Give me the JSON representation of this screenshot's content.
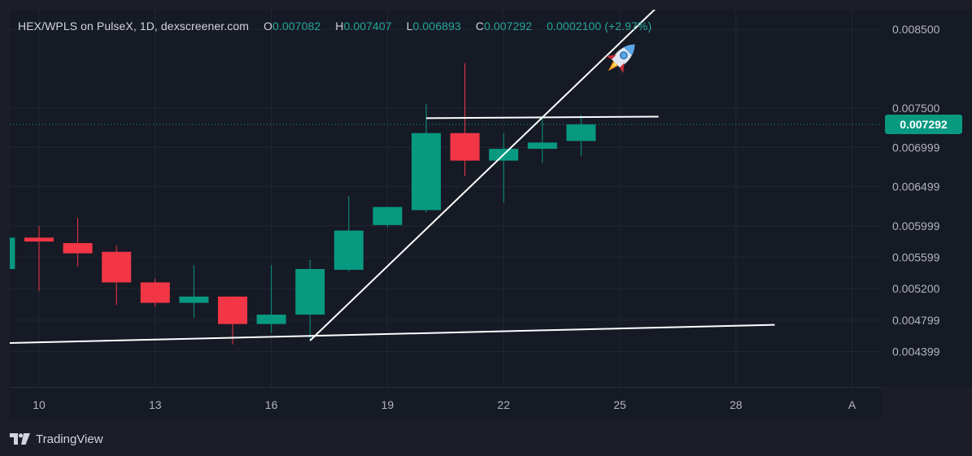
{
  "legend": {
    "title": "HEX/WPLS on PulseX, 1D, dexscreener.com",
    "o_label": "O",
    "o_value": "0.007082",
    "h_label": "H",
    "h_value": "0.007407",
    "l_label": "L",
    "l_value": "0.006893",
    "c_label": "C",
    "c_value": "0.007292",
    "change": "0.0002100 (+2.97%)"
  },
  "brand": {
    "name": "TradingView"
  },
  "colors": {
    "up": "#089981",
    "down": "#f23645",
    "background": "#161a25",
    "grid": "#232733",
    "axis_text": "#b2b5be",
    "trendline": "#ffffff",
    "price_label_bg": "#089981"
  },
  "icons": {
    "rocket": "rocket-emoji",
    "brand": "tradingview-logo-icon"
  },
  "chart_data": {
    "type": "candlestick",
    "title": "HEX/WPLS on PulseX, 1D, dexscreener.com",
    "x_ticks": [
      "10",
      "13",
      "16",
      "19",
      "22",
      "25",
      "28",
      "A"
    ],
    "y_ticks": [
      "0.008500",
      "0.007500",
      "0.006999",
      "0.006499",
      "0.005999",
      "0.005599",
      "0.005200",
      "0.004799",
      "0.004399"
    ],
    "ylim": [
      0.00395,
      0.00875
    ],
    "last_price": "0.007292",
    "candles": [
      {
        "day": 9,
        "open": 0.00545,
        "high": 0.00585,
        "low": 0.00545,
        "close": 0.00585
      },
      {
        "day": 10,
        "open": 0.00585,
        "high": 0.006,
        "low": 0.00517,
        "close": 0.0058
      },
      {
        "day": 11,
        "open": 0.00578,
        "high": 0.0061,
        "low": 0.00548,
        "close": 0.00565
      },
      {
        "day": 12,
        "open": 0.00567,
        "high": 0.00575,
        "low": 0.00499,
        "close": 0.00528
      },
      {
        "day": 13,
        "open": 0.00528,
        "high": 0.00533,
        "low": 0.00497,
        "close": 0.00502
      },
      {
        "day": 14,
        "open": 0.00502,
        "high": 0.0055,
        "low": 0.00483,
        "close": 0.0051
      },
      {
        "day": 15,
        "open": 0.0051,
        "high": 0.0051,
        "low": 0.00449,
        "close": 0.00475
      },
      {
        "day": 16,
        "open": 0.00475,
        "high": 0.0055,
        "low": 0.00464,
        "close": 0.00487
      },
      {
        "day": 17,
        "open": 0.00487,
        "high": 0.00557,
        "low": 0.00454,
        "close": 0.00545
      },
      {
        "day": 18,
        "open": 0.00544,
        "high": 0.00638,
        "low": 0.00542,
        "close": 0.00594
      },
      {
        "day": 19,
        "open": 0.00601,
        "high": 0.00624,
        "low": 0.00598,
        "close": 0.00624
      },
      {
        "day": 20,
        "open": 0.0062,
        "high": 0.00755,
        "low": 0.00617,
        "close": 0.00718
      },
      {
        "day": 21,
        "open": 0.00718,
        "high": 0.00807,
        "low": 0.00663,
        "close": 0.00683
      },
      {
        "day": 22,
        "open": 0.00683,
        "high": 0.00718,
        "low": 0.0063,
        "close": 0.00698
      },
      {
        "day": 23,
        "open": 0.00698,
        "high": 0.0074,
        "low": 0.0068,
        "close": 0.00706
      },
      {
        "day": 24,
        "open": 0.00708,
        "high": 0.00741,
        "low": 0.00689,
        "close": 0.00729
      }
    ],
    "trendlines": [
      {
        "name": "support",
        "from": {
          "day": 8.5,
          "price": 0.0045
        },
        "to": {
          "day": 29.0,
          "price": 0.00474
        }
      },
      {
        "name": "rising",
        "from": {
          "day": 17.0,
          "price": 0.00454
        },
        "to": {
          "day": 26.0,
          "price": 0.0088
        }
      },
      {
        "name": "resistance",
        "from": {
          "day": 20.0,
          "price": 0.00737
        },
        "to": {
          "day": 26.0,
          "price": 0.00739
        }
      }
    ],
    "grid": true
  }
}
